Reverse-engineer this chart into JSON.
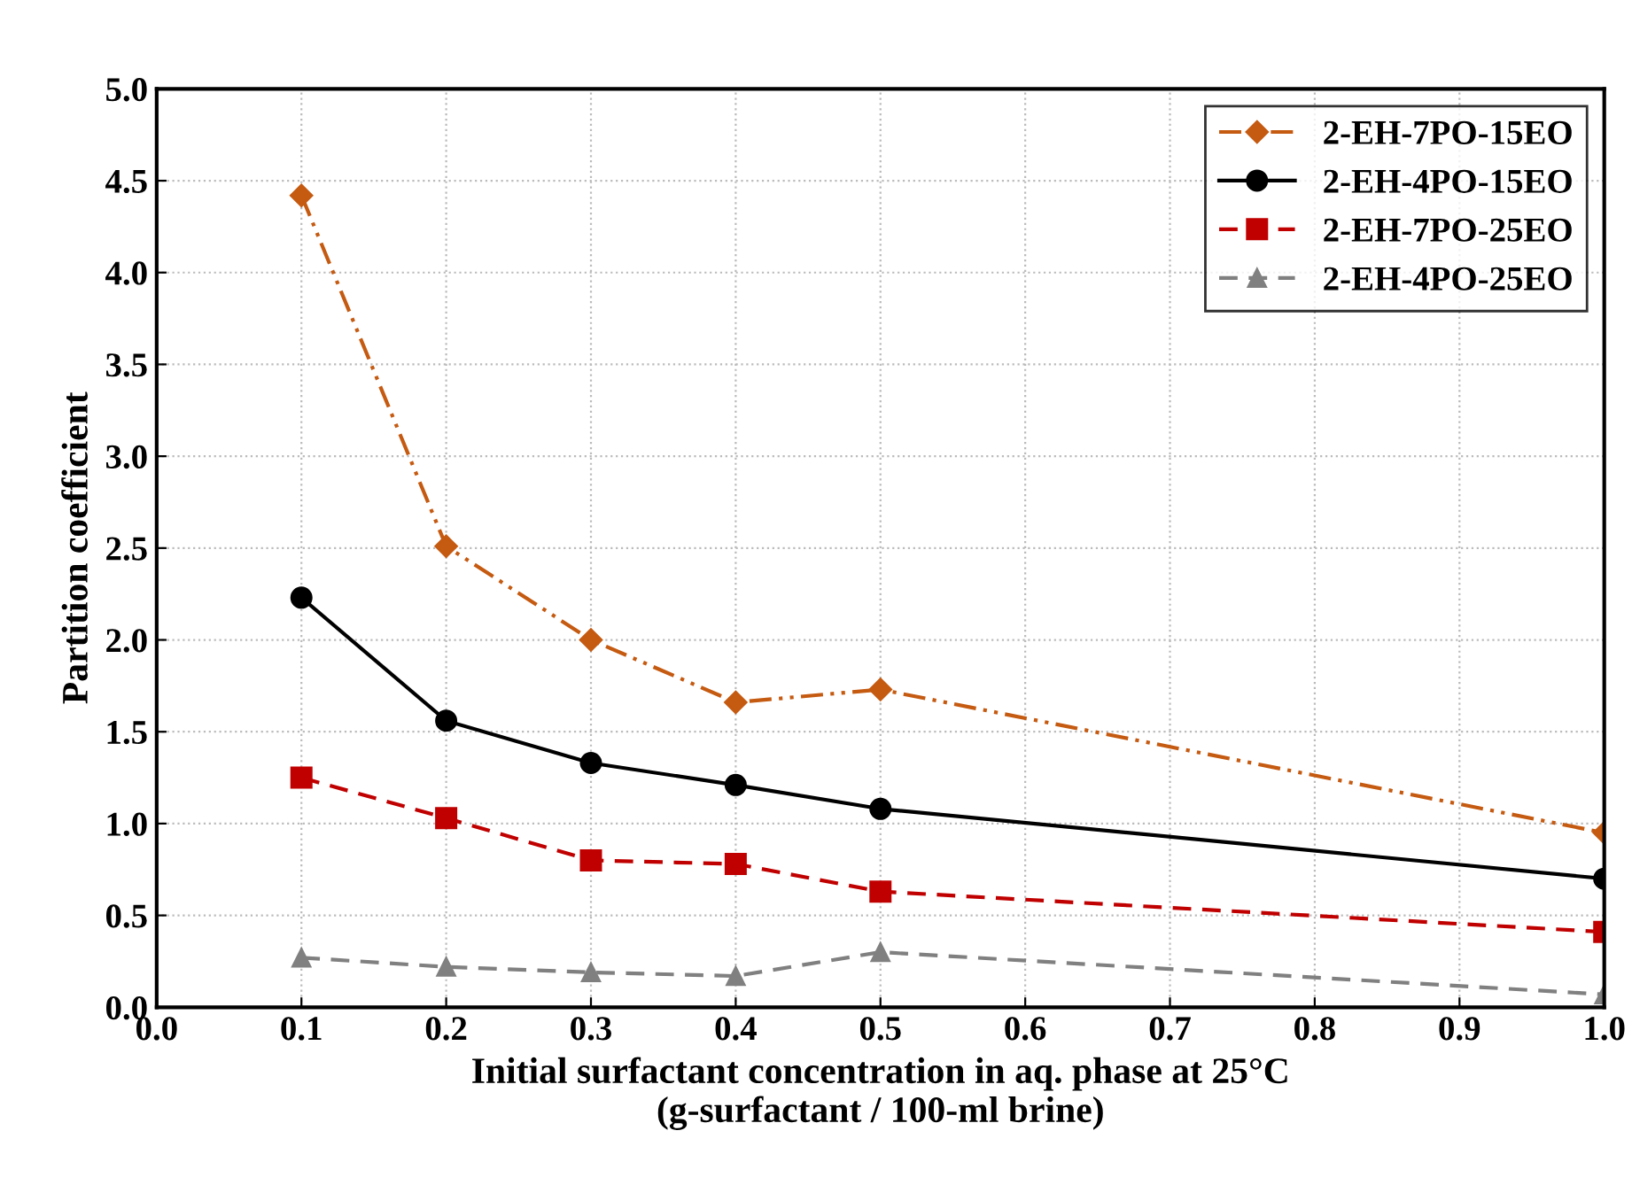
{
  "chart_data": {
    "type": "line",
    "xlabel": "Initial surfactant concentration in aq. phase at 25°C\n(g-surfactant / 100-ml brine)",
    "ylabel": "Partition coefficient",
    "x": [
      0.1,
      0.2,
      0.3,
      0.4,
      0.5,
      1.0
    ],
    "series": [
      {
        "name": "2-EH-7PO-15EO",
        "color": "#c55a11",
        "marker": "diamond",
        "line_style": "dashdotdot",
        "values": [
          4.42,
          2.51,
          2.0,
          1.66,
          1.73,
          0.95
        ]
      },
      {
        "name": "2-EH-4PO-15EO",
        "color": "#000000",
        "marker": "circle",
        "line_style": "solid",
        "values": [
          2.23,
          1.56,
          1.33,
          1.21,
          1.08,
          0.7
        ]
      },
      {
        "name": "2-EH-7PO-25EO",
        "color": "#c00000",
        "marker": "square",
        "line_style": "dashed",
        "values": [
          1.25,
          1.03,
          0.8,
          0.78,
          0.63,
          0.41
        ]
      },
      {
        "name": "2-EH-4PO-25EO",
        "color": "#808080",
        "marker": "triangle",
        "line_style": "dashed",
        "values": [
          0.27,
          0.22,
          0.19,
          0.17,
          0.3,
          0.07
        ]
      }
    ],
    "xlim": [
      0.0,
      1.0
    ],
    "xticks": [
      {
        "value": 0,
        "label": "0.0"
      },
      0.1,
      0.2,
      0.3,
      0.4,
      0.5,
      0.6,
      0.7,
      0.8,
      0.9,
      {
        "value": 1,
        "label": "1.0"
      }
    ],
    "ylim": [
      0.0,
      5.0
    ],
    "yticks": [
      {
        "value": 0,
        "label": "0.0"
      },
      0.5,
      {
        "value": 1,
        "label": "1.0"
      },
      1.5,
      {
        "value": 2,
        "label": "2.0"
      },
      2.5,
      {
        "value": 3,
        "label": "3.0"
      },
      3.5,
      {
        "value": 4,
        "label": "4.0"
      },
      4.5,
      {
        "value": 5,
        "label": "5.0"
      }
    ],
    "grid": true,
    "legend": "top right"
  }
}
